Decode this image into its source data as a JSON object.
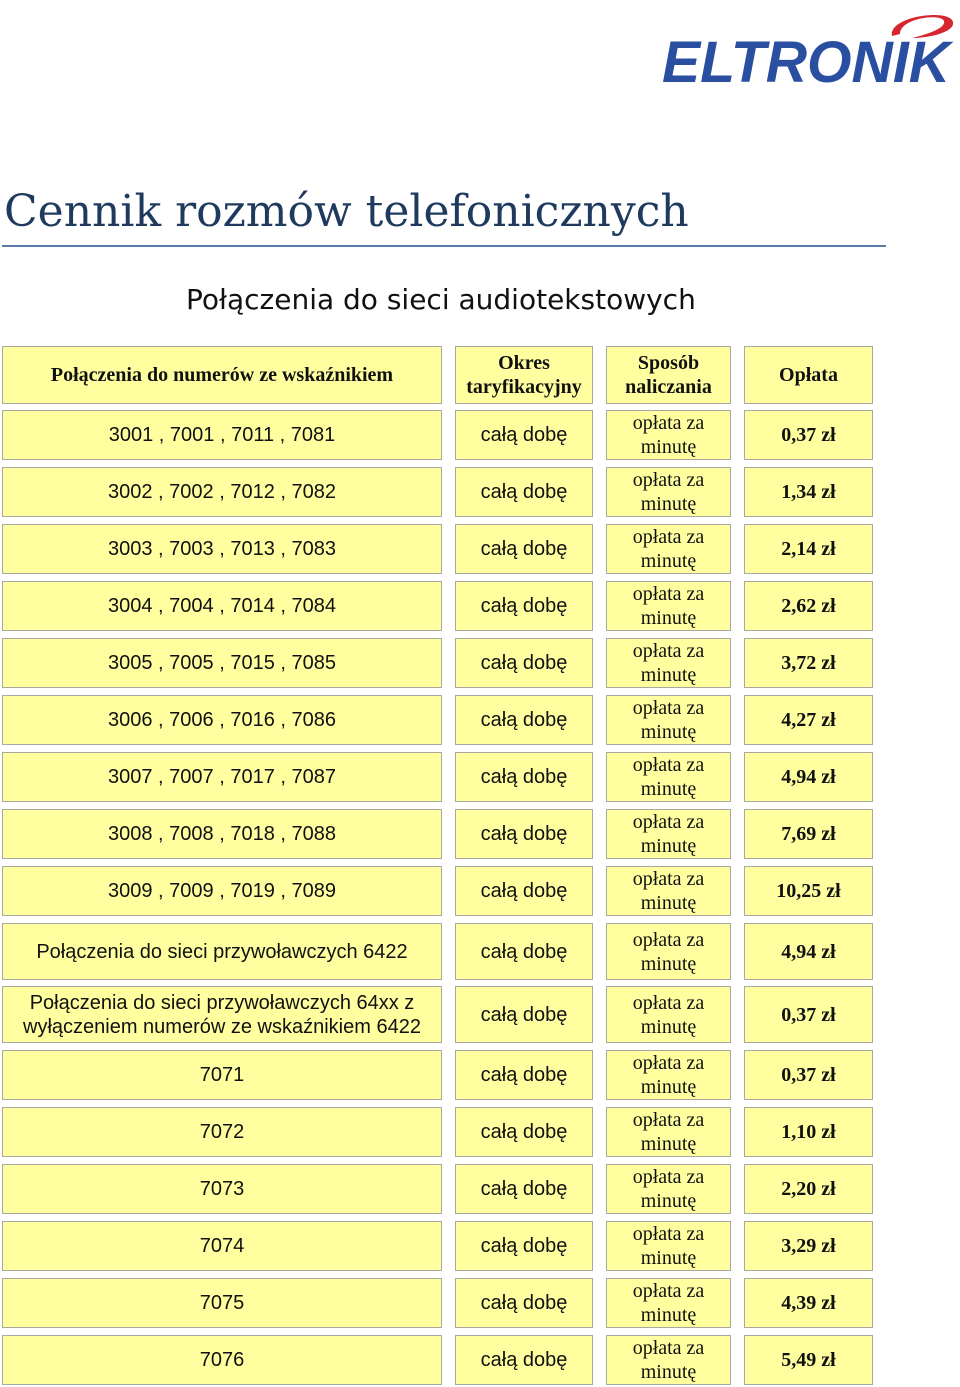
{
  "logo": {
    "text": "ELTRONIK",
    "brand_color": "#2A4FA0",
    "swoosh_color": "#D7262E"
  },
  "title": "Cennik rozmów telefonicznych",
  "section_title": "Połączenia do sieci audiotekstowych",
  "table": {
    "headers": {
      "numbers": "Połączenia do numerów ze wskaźnikiem",
      "period": "Okres taryfikacyjny",
      "method": "Sposób naliczania",
      "fee": "Opłata"
    },
    "rows": [
      {
        "numbers": "3001 , 7001 , 7011 , 7081",
        "period": "całą dobę",
        "method": "opłata za minutę",
        "fee": "0,37 zł"
      },
      {
        "numbers": "3002 , 7002 , 7012 , 7082",
        "period": "całą dobę",
        "method": "opłata za minutę",
        "fee": "1,34 zł"
      },
      {
        "numbers": "3003 , 7003 , 7013 , 7083",
        "period": "całą dobę",
        "method": "opłata za minutę",
        "fee": "2,14 zł"
      },
      {
        "numbers": "3004 , 7004 , 7014 , 7084",
        "period": "całą dobę",
        "method": "opłata za minutę",
        "fee": "2,62 zł"
      },
      {
        "numbers": "3005 , 7005 , 7015 , 7085",
        "period": "całą dobę",
        "method": "opłata za minutę",
        "fee": "3,72 zł"
      },
      {
        "numbers": "3006 , 7006 , 7016 , 7086",
        "period": "całą dobę",
        "method": "opłata za minutę",
        "fee": "4,27 zł"
      },
      {
        "numbers": "3007 , 7007 , 7017 , 7087",
        "period": "całą dobę",
        "method": "opłata za minutę",
        "fee": "4,94 zł"
      },
      {
        "numbers": "3008 , 7008 , 7018 , 7088",
        "period": "całą dobę",
        "method": "opłata za minutę",
        "fee": "7,69 zł"
      },
      {
        "numbers": "3009 , 7009 , 7019 , 7089",
        "period": "całą dobę",
        "method": "opłata za minutę",
        "fee": "10,25 zł"
      },
      {
        "numbers": "Połączenia do sieci przywoławczych 6422",
        "period": "całą dobę",
        "method": "opłata za minutę",
        "fee": "4,94 zł"
      },
      {
        "numbers_line1": "Połączenia do sieci przywoławczych 64xx  z",
        "numbers_line2": "wyłączeniem numerów ze wskaźnikiem 6422",
        "period": "całą dobę",
        "method": "opłata za minutę",
        "fee": "0,37 zł"
      },
      {
        "numbers": "7071",
        "period": "całą dobę",
        "method": "opłata za minutę",
        "fee": "0,37 zł"
      },
      {
        "numbers": "7072",
        "period": "całą dobę",
        "method": "opłata za minutę",
        "fee": "1,10 zł"
      },
      {
        "numbers": "7073",
        "period": "całą dobę",
        "method": "opłata za minutę",
        "fee": "2,20 zł"
      },
      {
        "numbers": "7074",
        "period": "całą dobę",
        "method": "opłata za minutę",
        "fee": "3,29 zł"
      },
      {
        "numbers": "7075",
        "period": "całą dobę",
        "method": "opłata za minutę",
        "fee": "4,39 zł"
      },
      {
        "numbers": "7076",
        "period": "całą dobę",
        "method": "opłata za minutę",
        "fee": "5,49 zł"
      }
    ]
  }
}
